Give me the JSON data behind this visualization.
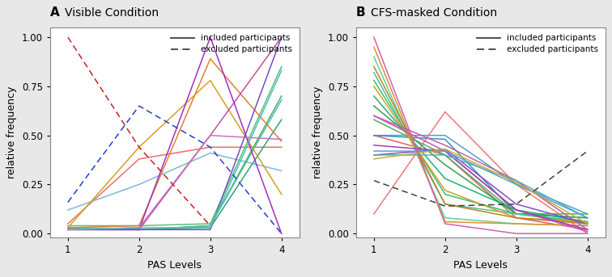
{
  "title_A": "Visible Condition",
  "title_B": "CFS-masked Condition",
  "label_A": "A",
  "label_B": "B",
  "xlabel": "PAS Levels",
  "ylabel": "relative frequency",
  "x": [
    1,
    2,
    3,
    4
  ],
  "ylim": [
    -0.02,
    1.05
  ],
  "yticks": [
    0.0,
    0.25,
    0.5,
    0.75,
    1.0
  ],
  "visible_included": [
    {
      "color": "#E8706A",
      "y": [
        0.05,
        0.38,
        0.44,
        0.44
      ]
    },
    {
      "color": "#7EB8D8",
      "y": [
        0.12,
        0.25,
        0.41,
        0.32
      ]
    },
    {
      "color": "#60C070",
      "y": [
        0.04,
        0.04,
        0.05,
        0.85
      ]
    },
    {
      "color": "#40B070",
      "y": [
        0.03,
        0.02,
        0.04,
        0.7
      ]
    },
    {
      "color": "#30A080",
      "y": [
        0.03,
        0.02,
        0.03,
        0.58
      ]
    },
    {
      "color": "#50C0A0",
      "y": [
        0.03,
        0.02,
        0.04,
        0.68
      ]
    },
    {
      "color": "#D4A020",
      "y": [
        0.03,
        0.44,
        0.78,
        0.2
      ]
    },
    {
      "color": "#E08030",
      "y": [
        0.03,
        0.04,
        0.89,
        0.47
      ]
    },
    {
      "color": "#C050A0",
      "y": [
        0.02,
        0.02,
        0.5,
        1.0
      ]
    },
    {
      "color": "#A030C0",
      "y": [
        0.02,
        0.02,
        1.0,
        0.0
      ]
    },
    {
      "color": "#C870C0",
      "y": [
        0.02,
        0.03,
        0.5,
        0.48
      ]
    },
    {
      "color": "#7050C0",
      "y": [
        0.02,
        0.02,
        0.02,
        1.0
      ]
    },
    {
      "color": "#50C0C0",
      "y": [
        0.02,
        0.03,
        0.03,
        0.83
      ]
    }
  ],
  "visible_excluded": [
    {
      "color": "#CC2020",
      "y": [
        1.0,
        0.44,
        0.04,
        null
      ]
    },
    {
      "color": "#2040CC",
      "y": [
        0.16,
        0.65,
        0.44,
        0.0
      ]
    }
  ],
  "cfs_included": [
    {
      "color": "#F07878",
      "y": [
        0.1,
        0.62,
        0.25,
        0.0
      ]
    },
    {
      "color": "#E06060",
      "y": [
        0.5,
        0.4,
        0.08,
        0.02
      ]
    },
    {
      "color": "#50A0D0",
      "y": [
        0.5,
        0.5,
        0.25,
        0.1
      ]
    },
    {
      "color": "#4090C0",
      "y": [
        0.5,
        0.48,
        0.1,
        0.08
      ]
    },
    {
      "color": "#50B060",
      "y": [
        0.58,
        0.4,
        0.1,
        0.1
      ]
    },
    {
      "color": "#30A050",
      "y": [
        0.65,
        0.35,
        0.1,
        0.08
      ]
    },
    {
      "color": "#20B070",
      "y": [
        0.7,
        0.28,
        0.12,
        0.06
      ]
    },
    {
      "color": "#30C080",
      "y": [
        0.78,
        0.2,
        0.1,
        0.06
      ]
    },
    {
      "color": "#50C090",
      "y": [
        0.82,
        0.15,
        0.1,
        0.05
      ]
    },
    {
      "color": "#60D0A0",
      "y": [
        0.9,
        0.08,
        0.05,
        0.04
      ]
    },
    {
      "color": "#D0A020",
      "y": [
        0.75,
        0.22,
        0.08,
        0.06
      ]
    },
    {
      "color": "#C08020",
      "y": [
        0.85,
        0.15,
        0.08,
        0.05
      ]
    },
    {
      "color": "#E09030",
      "y": [
        0.95,
        0.06,
        0.05,
        0.04
      ]
    },
    {
      "color": "#C060A0",
      "y": [
        0.6,
        0.45,
        0.27,
        0.02
      ]
    },
    {
      "color": "#D050C0",
      "y": [
        0.6,
        0.42,
        0.12,
        0.01
      ]
    },
    {
      "color": "#A040B0",
      "y": [
        0.45,
        0.42,
        0.12,
        0.02
      ]
    },
    {
      "color": "#8050C0",
      "y": [
        0.4,
        0.43,
        0.15,
        0.05
      ]
    },
    {
      "color": "#60A0D0",
      "y": [
        0.42,
        0.42,
        0.25,
        0.08
      ]
    },
    {
      "color": "#50B0C0",
      "y": [
        0.4,
        0.4,
        0.27,
        0.08
      ]
    },
    {
      "color": "#C0B030",
      "y": [
        0.38,
        0.43,
        0.26,
        0.05
      ]
    },
    {
      "color": "#D060B0",
      "y": [
        1.0,
        0.05,
        0.0,
        0.0
      ]
    }
  ],
  "cfs_excluded": [
    {
      "color": "#404040",
      "y": [
        0.27,
        0.14,
        0.15,
        0.42
      ]
    }
  ],
  "legend_solid_color": "#404040",
  "legend_dashed_color": "#404040",
  "background_color": "#e8e8e8",
  "panel_bg": "#ffffff"
}
